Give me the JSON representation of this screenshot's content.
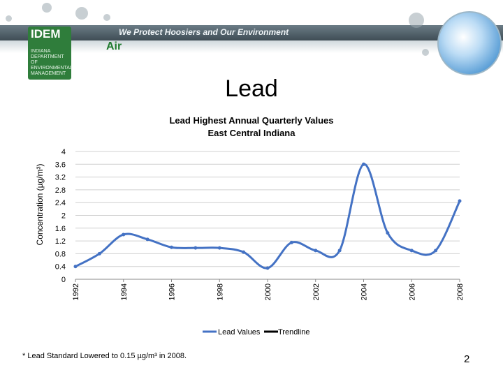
{
  "banner": {
    "org_logo_text": "IDEM",
    "org_logo_subtext": "INDIANA DEPARTMENT OF ENVIRONMENTAL MANAGEMENT",
    "motto": "We Protect Hoosiers and Our Environment",
    "section": "Air"
  },
  "slide": {
    "title": "Lead",
    "footnote": "* Lead Standard Lowered to 0.15 µg/m³ in 2008.",
    "page_number": "2"
  },
  "chart_data": {
    "type": "line",
    "title": "Lead Highest Annual Quarterly Values",
    "subtitle": "East Central Indiana",
    "xlabel": "",
    "ylabel": "Concentration (µg/m³)",
    "ylim": [
      0,
      4
    ],
    "xlim": [
      1992,
      2008
    ],
    "yticks": [
      0,
      0.4,
      0.8,
      1.2,
      1.6,
      2,
      2.4,
      2.8,
      3.2,
      3.6,
      4
    ],
    "ytick_labels": [
      "0",
      "0.4",
      "0.8",
      "1.2",
      "1.6",
      "2",
      "2.4",
      "2.8",
      "3.2",
      "3.6",
      "4"
    ],
    "xticks": [
      1992,
      1994,
      1996,
      1998,
      2000,
      2002,
      2004,
      2006,
      2008
    ],
    "xtick_labels": [
      "1992",
      "1994",
      "1996",
      "1998",
      "2000",
      "2002",
      "2004",
      "2006",
      "2008"
    ],
    "grid": true,
    "legend_position": "bottom",
    "series": [
      {
        "name": "Lead Values",
        "color": "#4472c4",
        "x": [
          1992,
          1993,
          1994,
          1995,
          1996,
          1997,
          1998,
          1999,
          2000,
          2001,
          2002,
          2003,
          2004,
          2005,
          2006,
          2007,
          2008
        ],
        "values": [
          0.4,
          0.8,
          1.4,
          1.25,
          1.0,
          0.98,
          0.98,
          0.85,
          0.35,
          1.15,
          0.9,
          0.9,
          3.6,
          1.45,
          0.9,
          0.9,
          2.45
        ]
      },
      {
        "name": "Trendline",
        "color": "#000000",
        "x": [],
        "values": []
      }
    ]
  }
}
